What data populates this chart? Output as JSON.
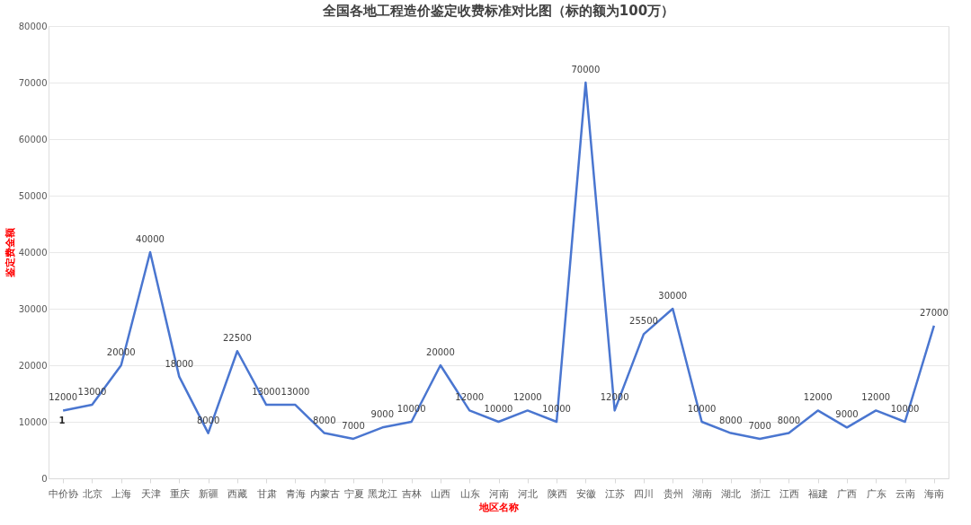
{
  "chart_data": {
    "type": "line",
    "title": "全国各地工程造价鉴定收费标准对比图（标的额为100万）",
    "xlabel": "地区名称",
    "ylabel": "鉴定费金额",
    "categories": [
      "中价协",
      "北京",
      "上海",
      "天津",
      "重庆",
      "新疆",
      "西藏",
      "甘肃",
      "青海",
      "内蒙古",
      "宁夏",
      "黑龙江",
      "吉林",
      "山西",
      "山东",
      "河南",
      "河北",
      "陕西",
      "安徽",
      "江苏",
      "四川",
      "贵州",
      "湖南",
      "湖北",
      "浙江",
      "江西",
      "福建",
      "广西",
      "广东",
      "云南",
      "海南"
    ],
    "series": [
      {
        "color": "#4a76d0",
        "values": [
          12000,
          13000,
          20000,
          40000,
          18000,
          8000,
          22500,
          13000,
          13000,
          8000,
          7000,
          9000,
          10000,
          20000,
          12000,
          10000,
          12000,
          10000,
          70000,
          12000,
          25500,
          30000,
          10000,
          8000,
          7000,
          8000,
          12000,
          9000,
          12000,
          10000,
          27000
        ]
      }
    ],
    "ylim": [
      0,
      80000
    ],
    "yticks": [
      0,
      10000,
      20000,
      30000,
      40000,
      50000,
      60000,
      70000,
      80000
    ],
    "grid": "y",
    "data_labels": true,
    "legend": false,
    "marker": "none",
    "line_style": "solid",
    "annotations": [
      "1"
    ]
  }
}
